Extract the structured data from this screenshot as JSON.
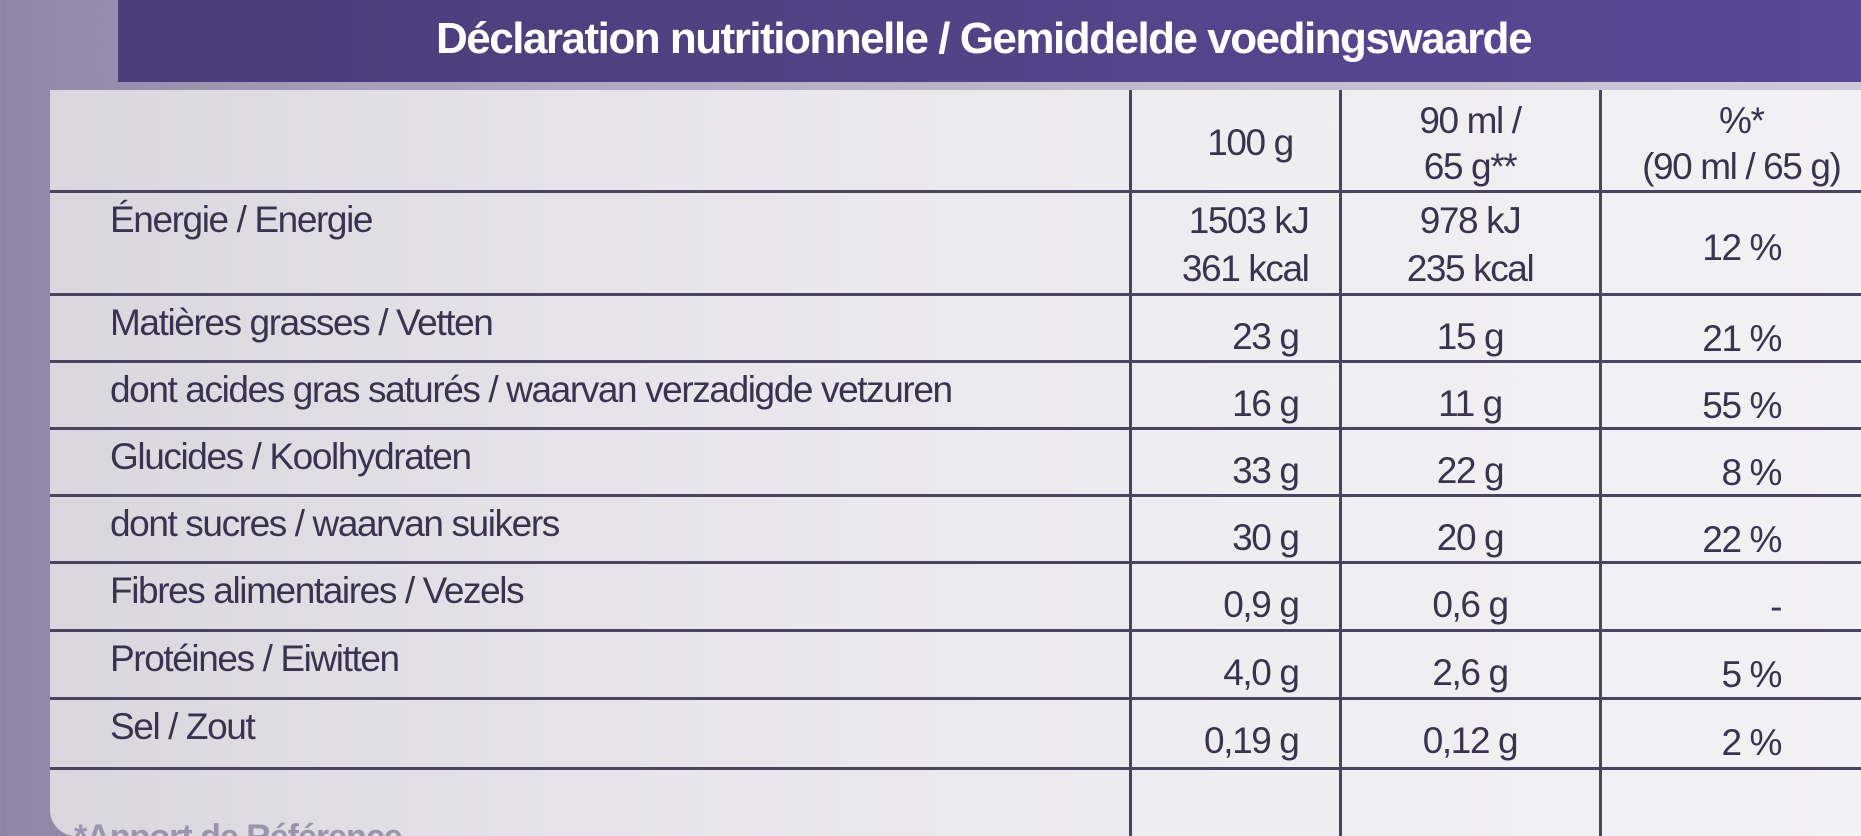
{
  "title": "Déclaration nutritionnelle / Gemiddelde voedingswaarde",
  "columns": {
    "per_100": "100 g",
    "per_serving_line1": "90 ml /",
    "per_serving_line2": "65 g**",
    "ri_line1": "%*",
    "ri_line2": "(90 ml / 65 g)"
  },
  "energy": {
    "label": "Énergie / Energie",
    "per_100_kj": "1503 kJ",
    "per_100_kcal": "361 kcal",
    "per_serving_kj": "978 kJ",
    "per_serving_kcal": "235 kcal",
    "ri": "12 %"
  },
  "rows": [
    {
      "label": "Matières grasses / Vetten",
      "per_100": "23 g",
      "per_serving": "15 g",
      "ri": "21 %"
    },
    {
      "label": "dont acides gras saturés / waarvan verzadigde vetzuren",
      "per_100": "16 g",
      "per_serving": "11 g",
      "ri": "55 %"
    },
    {
      "label": "Glucides / Koolhydraten",
      "per_100": "33 g",
      "per_serving": "22 g",
      "ri": "8 %"
    },
    {
      "label": "dont sucres / waarvan suikers",
      "per_100": "30 g",
      "per_serving": "20 g",
      "ri": "22 %"
    },
    {
      "label": "Fibres alimentaires / Vezels",
      "per_100": "0,9 g",
      "per_serving": "0,6 g",
      "ri": "-"
    },
    {
      "label": "Protéines / Eiwitten",
      "per_100": "4,0 g",
      "per_serving": "2,6 g",
      "ri": "5 %"
    },
    {
      "label": "Sel / Zout",
      "per_100": "0,19 g",
      "per_serving": "0,12 g",
      "ri": "2 %"
    }
  ],
  "footnote": "*Apport de Référence",
  "colors": {
    "header_bg": "#4f4185",
    "header_text": "#ffffff",
    "table_text": "#3a3350",
    "border": "#4a4462",
    "background": "#a79fbb"
  }
}
